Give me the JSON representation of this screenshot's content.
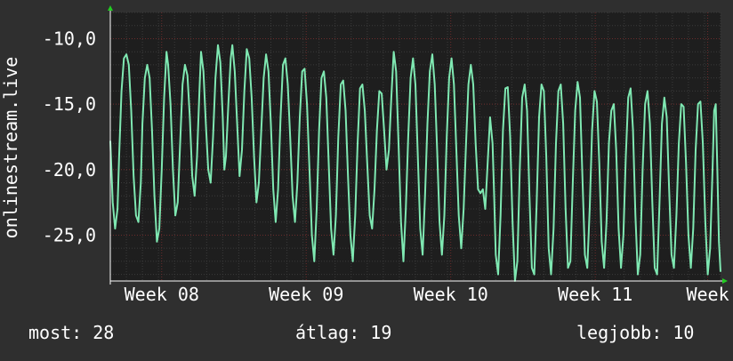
{
  "chart_data": {
    "type": "line",
    "ylabel": "onlinestream.live",
    "xlabel": "",
    "title": "",
    "grid": true,
    "legend": "none",
    "ylim": [
      -28.5,
      -8
    ],
    "y_ticks": [
      -10,
      -15,
      -20,
      -25
    ],
    "y_tick_labels": [
      "-10,0",
      "-15,0",
      "-20,0",
      "-25,0"
    ],
    "x_range_days": [
      0,
      38
    ],
    "x_ticks": [
      {
        "label": "Week 08",
        "day": 3.2
      },
      {
        "label": "Week 09",
        "day": 12.2
      },
      {
        "label": "Week 10",
        "day": 21.2
      },
      {
        "label": "Week 11",
        "day": 30.2
      },
      {
        "label": "Week",
        "day": 37.2
      }
    ],
    "series": [
      {
        "name": "",
        "x_unit": "days",
        "points": [
          [
            0.0,
            -17.8
          ],
          [
            0.15,
            -22.5
          ],
          [
            0.3,
            -24.5
          ],
          [
            0.45,
            -23.0
          ],
          [
            0.55,
            -19.0
          ],
          [
            0.7,
            -14.0
          ],
          [
            0.85,
            -11.5
          ],
          [
            1.0,
            -11.2
          ],
          [
            1.15,
            -12.0
          ],
          [
            1.3,
            -15.5
          ],
          [
            1.45,
            -20.5
          ],
          [
            1.6,
            -23.5
          ],
          [
            1.75,
            -24.0
          ],
          [
            1.9,
            -21.0
          ],
          [
            2.0,
            -16.5
          ],
          [
            2.15,
            -13.0
          ],
          [
            2.3,
            -12.0
          ],
          [
            2.45,
            -13.0
          ],
          [
            2.6,
            -17.0
          ],
          [
            2.75,
            -22.0
          ],
          [
            2.9,
            -25.5
          ],
          [
            3.05,
            -24.5
          ],
          [
            3.2,
            -20.0
          ],
          [
            3.35,
            -14.5
          ],
          [
            3.5,
            -11.0
          ],
          [
            3.6,
            -12.0
          ],
          [
            3.75,
            -15.0
          ],
          [
            3.9,
            -20.0
          ],
          [
            4.05,
            -23.5
          ],
          [
            4.2,
            -22.5
          ],
          [
            4.35,
            -18.0
          ],
          [
            4.5,
            -13.5
          ],
          [
            4.65,
            -12.0
          ],
          [
            4.8,
            -12.8
          ],
          [
            4.95,
            -16.0
          ],
          [
            5.1,
            -20.5
          ],
          [
            5.25,
            -22.0
          ],
          [
            5.4,
            -19.0
          ],
          [
            5.55,
            -14.0
          ],
          [
            5.65,
            -11.0
          ],
          [
            5.8,
            -12.5
          ],
          [
            5.95,
            -16.5
          ],
          [
            6.1,
            -20.0
          ],
          [
            6.25,
            -21.0
          ],
          [
            6.4,
            -17.5
          ],
          [
            6.55,
            -13.0
          ],
          [
            6.7,
            -10.5
          ],
          [
            6.85,
            -11.8
          ],
          [
            7.0,
            -16.0
          ],
          [
            7.1,
            -20.0
          ],
          [
            7.2,
            -19.0
          ],
          [
            7.35,
            -15.0
          ],
          [
            7.5,
            -11.5
          ],
          [
            7.6,
            -10.5
          ],
          [
            7.75,
            -12.5
          ],
          [
            7.9,
            -16.5
          ],
          [
            8.05,
            -20.5
          ],
          [
            8.2,
            -18.5
          ],
          [
            8.35,
            -14.0
          ],
          [
            8.5,
            -10.8
          ],
          [
            8.65,
            -11.5
          ],
          [
            8.8,
            -14.5
          ],
          [
            8.95,
            -19.0
          ],
          [
            9.1,
            -22.5
          ],
          [
            9.25,
            -21.0
          ],
          [
            9.4,
            -17.0
          ],
          [
            9.55,
            -13.0
          ],
          [
            9.7,
            -11.2
          ],
          [
            9.85,
            -12.5
          ],
          [
            10.0,
            -16.5
          ],
          [
            10.15,
            -21.5
          ],
          [
            10.3,
            -24.0
          ],
          [
            10.45,
            -21.5
          ],
          [
            10.6,
            -16.0
          ],
          [
            10.75,
            -12.0
          ],
          [
            10.9,
            -11.5
          ],
          [
            11.05,
            -13.5
          ],
          [
            11.2,
            -17.5
          ],
          [
            11.35,
            -22.0
          ],
          [
            11.5,
            -24.0
          ],
          [
            11.65,
            -21.0
          ],
          [
            11.8,
            -16.0
          ],
          [
            11.95,
            -12.5
          ],
          [
            12.1,
            -12.3
          ],
          [
            12.25,
            -15.0
          ],
          [
            12.4,
            -20.0
          ],
          [
            12.55,
            -25.0
          ],
          [
            12.7,
            -27.0
          ],
          [
            12.85,
            -23.0
          ],
          [
            13.0,
            -17.0
          ],
          [
            13.15,
            -13.0
          ],
          [
            13.3,
            -12.5
          ],
          [
            13.45,
            -14.5
          ],
          [
            13.6,
            -19.5
          ],
          [
            13.75,
            -24.5
          ],
          [
            13.9,
            -26.5
          ],
          [
            14.05,
            -23.5
          ],
          [
            14.2,
            -17.5
          ],
          [
            14.35,
            -13.5
          ],
          [
            14.5,
            -13.2
          ],
          [
            14.65,
            -15.5
          ],
          [
            14.8,
            -20.5
          ],
          [
            14.95,
            -25.0
          ],
          [
            15.1,
            -27.0
          ],
          [
            15.25,
            -23.5
          ],
          [
            15.4,
            -18.0
          ],
          [
            15.55,
            -13.8
          ],
          [
            15.7,
            -13.5
          ],
          [
            15.85,
            -15.5
          ],
          [
            16.0,
            -19.5
          ],
          [
            16.15,
            -23.5
          ],
          [
            16.3,
            -24.5
          ],
          [
            16.45,
            -21.5
          ],
          [
            16.6,
            -17.0
          ],
          [
            16.75,
            -14.0
          ],
          [
            16.9,
            -14.2
          ],
          [
            17.05,
            -17.0
          ],
          [
            17.2,
            -20.0
          ],
          [
            17.35,
            -18.5
          ],
          [
            17.5,
            -14.5
          ],
          [
            17.65,
            -11.0
          ],
          [
            17.8,
            -12.5
          ],
          [
            17.95,
            -18.0
          ],
          [
            18.1,
            -24.0
          ],
          [
            18.25,
            -27.0
          ],
          [
            18.4,
            -23.0
          ],
          [
            18.55,
            -17.5
          ],
          [
            18.7,
            -13.0
          ],
          [
            18.85,
            -11.5
          ],
          [
            19.0,
            -13.5
          ],
          [
            19.15,
            -19.0
          ],
          [
            19.3,
            -24.5
          ],
          [
            19.45,
            -26.5
          ],
          [
            19.6,
            -22.0
          ],
          [
            19.75,
            -16.5
          ],
          [
            19.9,
            -12.5
          ],
          [
            20.05,
            -11.2
          ],
          [
            20.2,
            -13.5
          ],
          [
            20.35,
            -18.5
          ],
          [
            20.5,
            -24.0
          ],
          [
            20.65,
            -26.5
          ],
          [
            20.8,
            -23.5
          ],
          [
            20.95,
            -17.5
          ],
          [
            21.1,
            -13.0
          ],
          [
            21.25,
            -11.5
          ],
          [
            21.4,
            -13.5
          ],
          [
            21.55,
            -18.5
          ],
          [
            21.7,
            -23.5
          ],
          [
            21.85,
            -26.0
          ],
          [
            22.0,
            -23.0
          ],
          [
            22.15,
            -18.0
          ],
          [
            22.3,
            -13.5
          ],
          [
            22.45,
            -12.0
          ],
          [
            22.6,
            -13.5
          ],
          [
            22.75,
            -18.0
          ],
          [
            22.9,
            -21.5
          ],
          [
            23.05,
            -21.8
          ],
          [
            23.2,
            -21.5
          ],
          [
            23.35,
            -23.0
          ],
          [
            23.5,
            -19.5
          ],
          [
            23.65,
            -16.0
          ],
          [
            23.8,
            -18.0
          ],
          [
            23.9,
            -22.0
          ],
          [
            24.0,
            -26.5
          ],
          [
            24.15,
            -28.0
          ],
          [
            24.3,
            -23.5
          ],
          [
            24.45,
            -17.0
          ],
          [
            24.6,
            -13.8
          ],
          [
            24.75,
            -13.7
          ],
          [
            24.9,
            -17.5
          ],
          [
            25.05,
            -24.0
          ],
          [
            25.2,
            -28.5
          ],
          [
            25.35,
            -27.0
          ],
          [
            25.5,
            -20.0
          ],
          [
            25.65,
            -14.5
          ],
          [
            25.8,
            -13.5
          ],
          [
            25.95,
            -15.5
          ],
          [
            26.1,
            -22.0
          ],
          [
            26.25,
            -27.5
          ],
          [
            26.4,
            -28.0
          ],
          [
            26.55,
            -22.5
          ],
          [
            26.7,
            -16.0
          ],
          [
            26.85,
            -13.5
          ],
          [
            27.0,
            -14.0
          ],
          [
            27.15,
            -19.0
          ],
          [
            27.3,
            -26.0
          ],
          [
            27.45,
            -28.0
          ],
          [
            27.6,
            -24.5
          ],
          [
            27.75,
            -18.0
          ],
          [
            27.9,
            -14.0
          ],
          [
            28.05,
            -13.5
          ],
          [
            28.2,
            -16.5
          ],
          [
            28.35,
            -23.0
          ],
          [
            28.5,
            -27.5
          ],
          [
            28.65,
            -27.0
          ],
          [
            28.8,
            -21.0
          ],
          [
            28.95,
            -15.5
          ],
          [
            29.1,
            -13.3
          ],
          [
            29.25,
            -14.5
          ],
          [
            29.4,
            -20.5
          ],
          [
            29.55,
            -26.5
          ],
          [
            29.7,
            -27.5
          ],
          [
            29.85,
            -23.0
          ],
          [
            30.0,
            -17.0
          ],
          [
            30.15,
            -14.0
          ],
          [
            30.3,
            -14.8
          ],
          [
            30.45,
            -19.5
          ],
          [
            30.6,
            -25.5
          ],
          [
            30.75,
            -27.5
          ],
          [
            30.9,
            -24.0
          ],
          [
            31.05,
            -18.0
          ],
          [
            31.2,
            -15.5
          ],
          [
            31.35,
            -15.0
          ],
          [
            31.5,
            -18.5
          ],
          [
            31.65,
            -24.5
          ],
          [
            31.8,
            -27.5
          ],
          [
            31.95,
            -25.0
          ],
          [
            32.1,
            -19.0
          ],
          [
            32.25,
            -14.5
          ],
          [
            32.4,
            -13.8
          ],
          [
            32.55,
            -17.0
          ],
          [
            32.7,
            -23.5
          ],
          [
            32.85,
            -28.0
          ],
          [
            33.0,
            -26.5
          ],
          [
            33.15,
            -20.0
          ],
          [
            33.3,
            -15.0
          ],
          [
            33.45,
            -14.0
          ],
          [
            33.6,
            -16.5
          ],
          [
            33.75,
            -22.5
          ],
          [
            33.9,
            -27.5
          ],
          [
            34.05,
            -28.0
          ],
          [
            34.2,
            -22.5
          ],
          [
            34.35,
            -16.5
          ],
          [
            34.5,
            -14.5
          ],
          [
            34.65,
            -16.0
          ],
          [
            34.8,
            -21.5
          ],
          [
            34.95,
            -26.5
          ],
          [
            35.1,
            -27.5
          ],
          [
            35.25,
            -23.5
          ],
          [
            35.4,
            -18.0
          ],
          [
            35.55,
            -15.0
          ],
          [
            35.7,
            -15.2
          ],
          [
            35.85,
            -19.5
          ],
          [
            36.0,
            -25.0
          ],
          [
            36.15,
            -27.5
          ],
          [
            36.3,
            -24.5
          ],
          [
            36.45,
            -18.5
          ],
          [
            36.6,
            -15.0
          ],
          [
            36.75,
            -14.8
          ],
          [
            36.9,
            -18.0
          ],
          [
            37.05,
            -24.0
          ],
          [
            37.2,
            -28.0
          ],
          [
            37.35,
            -26.0
          ],
          [
            37.5,
            -20.0
          ],
          [
            37.6,
            -15.5
          ],
          [
            37.7,
            -15.0
          ],
          [
            37.8,
            -20.0
          ],
          [
            37.9,
            -25.5
          ],
          [
            38.0,
            -27.8
          ]
        ]
      }
    ]
  },
  "colors": {
    "background": "#2f2f2f",
    "plot_background": "#1e1e1e",
    "series_line": "#7fe8b2",
    "grid_major": "#6b2b2b",
    "grid_minor": "#3b3b3b",
    "axis_arrow": "#22cc22",
    "text": "#ffffff"
  },
  "footer": {
    "current_label": "most: 28",
    "average_label": "átlag: 19",
    "best_label": "legjobb: 10"
  }
}
